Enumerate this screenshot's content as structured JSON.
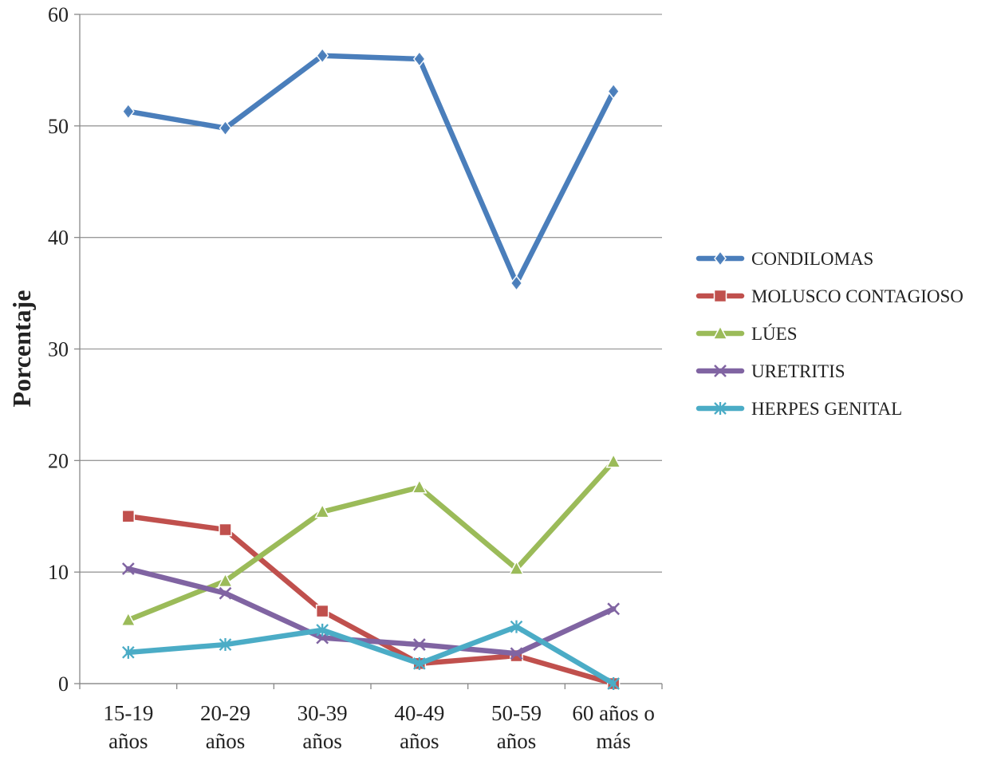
{
  "chart_data": {
    "type": "line",
    "ylabel": "Porcentaje",
    "ylim": [
      0,
      60
    ],
    "yticks": [
      "0",
      "10",
      "20",
      "30",
      "40",
      "50",
      "60"
    ],
    "grid": true,
    "legend_position": "right",
    "categories": [
      [
        "15-19",
        "años"
      ],
      [
        "20-29",
        "años"
      ],
      [
        "30-39",
        "años"
      ],
      [
        "40-49",
        "años"
      ],
      [
        "50-59",
        "años"
      ],
      [
        "60 años o",
        "más"
      ]
    ],
    "series": [
      {
        "name": "CONDILOMAS",
        "color": "#4a7ebb",
        "marker": "diamond",
        "values": [
          51.3,
          49.8,
          56.3,
          56.0,
          35.9,
          53.1
        ]
      },
      {
        "name": "MOLUSCO CONTAGIOSO",
        "color": "#c0504d",
        "marker": "square",
        "values": [
          15.0,
          13.8,
          6.5,
          1.8,
          2.5,
          0.0
        ]
      },
      {
        "name": "LÚES",
        "color": "#9bbb59",
        "marker": "triangle",
        "values": [
          5.7,
          9.2,
          15.4,
          17.6,
          10.3,
          19.9
        ]
      },
      {
        "name": "URETRITIS",
        "color": "#8064a2",
        "marker": "x",
        "values": [
          10.3,
          8.1,
          4.1,
          3.5,
          2.7,
          6.7
        ]
      },
      {
        "name": "HERPES GENITAL",
        "color": "#4bacc6",
        "marker": "asterisk",
        "values": [
          2.8,
          3.5,
          4.8,
          1.8,
          5.1,
          0.0
        ]
      }
    ]
  }
}
